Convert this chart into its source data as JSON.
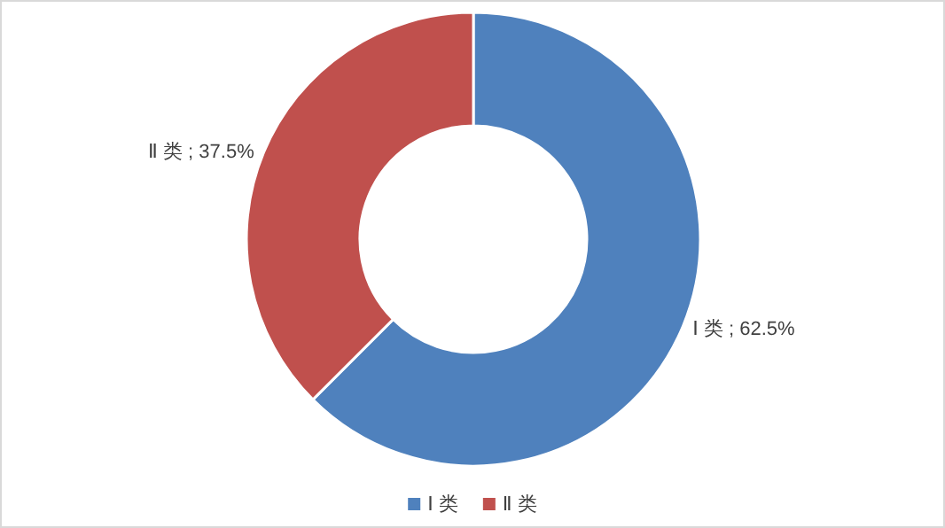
{
  "chart_data": {
    "type": "donut",
    "categories": [
      "Ⅰ 类",
      "Ⅱ 类"
    ],
    "values": [
      62.5,
      37.5
    ],
    "colors": [
      "#4f81bd",
      "#c0504d"
    ],
    "value_labels": [
      "Ⅰ 类 ; 62.5%",
      "Ⅱ 类 ; 37.5%"
    ],
    "legend": "bottom"
  }
}
